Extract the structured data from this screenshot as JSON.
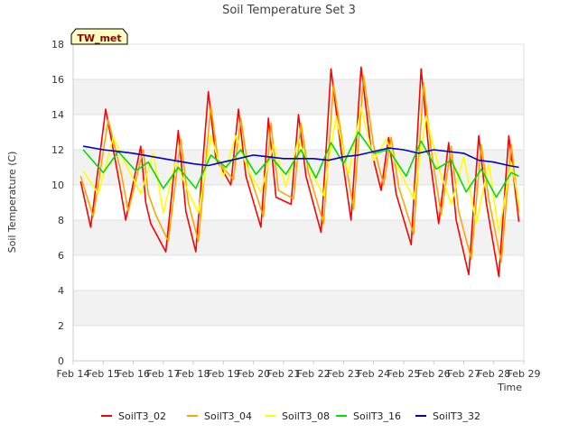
{
  "chart_data": {
    "type": "line",
    "title": "Soil Temperature Set 3",
    "xlabel": "Time",
    "ylabel": "Soil Temperature (C)",
    "ylim": [
      0,
      18
    ],
    "yticks": [
      0,
      2,
      4,
      6,
      8,
      10,
      12,
      14,
      16,
      18
    ],
    "xlim": [
      "Feb 14",
      "Feb 29"
    ],
    "xticks": [
      "Feb 14",
      "Feb 15",
      "Feb 16",
      "Feb 17",
      "Feb 18",
      "Feb 19",
      "Feb 20",
      "Feb 21",
      "Feb 22",
      "Feb 23",
      "Feb 24",
      "Feb 25",
      "Feb 26",
      "Feb 27",
      "Feb 28",
      "Feb 29"
    ],
    "grid": "horizontal bands",
    "legend_position": "bottom",
    "badge": "TW_met",
    "series": [
      {
        "name": "SoilT3_02",
        "color": "#ff0000",
        "x": [
          "Feb 14 06:00",
          "Feb 14 14:00",
          "Feb 15 02:00",
          "Feb 15 12:00",
          "Feb 15 18:00",
          "Feb 16 06:00",
          "Feb 16 10:00",
          "Feb 16 14:00",
          "Feb 17 02:00",
          "Feb 17 12:00",
          "Feb 17 18:00",
          "Feb 18 02:00",
          "Feb 18 12:00",
          "Feb 18 18:00",
          "Feb 19 06:00",
          "Feb 19 12:00",
          "Feb 19 18:00",
          "Feb 20 06:00",
          "Feb 20 12:00",
          "Feb 20 18:00",
          "Feb 21 06:00",
          "Feb 21 12:00",
          "Feb 21 18:00",
          "Feb 22 06:00",
          "Feb 22 14:00",
          "Feb 22 22:00",
          "Feb 23 06:00",
          "Feb 23 14:00",
          "Feb 23 22:00",
          "Feb 24 06:00",
          "Feb 24 12:00",
          "Feb 24 18:00",
          "Feb 25 06:00",
          "Feb 25 14:00",
          "Feb 25 20:00",
          "Feb 26 04:00",
          "Feb 26 12:00",
          "Feb 26 18:00",
          "Feb 27 04:00",
          "Feb 27 12:00",
          "Feb 27 18:00",
          "Feb 28 04:00",
          "Feb 28 12:00",
          "Feb 28 20:00"
        ],
        "y": [
          10.2,
          7.6,
          14.3,
          10.5,
          8.0,
          12.2,
          9.0,
          7.8,
          6.2,
          13.1,
          8.5,
          6.2,
          15.3,
          11.5,
          10.0,
          14.3,
          10.5,
          7.6,
          13.8,
          9.3,
          8.9,
          14.0,
          10.5,
          7.3,
          16.6,
          12.0,
          8.0,
          16.7,
          12.0,
          9.7,
          12.7,
          9.5,
          6.6,
          16.6,
          12.0,
          7.8,
          12.4,
          8.0,
          4.9,
          12.8,
          9.0,
          4.8,
          12.8,
          7.9
        ]
      },
      {
        "name": "SoilT3_04",
        "color": "#ffa500",
        "x": [
          "Feb 14 06:00",
          "Feb 14 16:00",
          "Feb 15 04:00",
          "Feb 15 14:00",
          "Feb 15 20:00",
          "Feb 16 08:00",
          "Feb 16 12:00",
          "Feb 16 18:00",
          "Feb 17 04:00",
          "Feb 17 14:00",
          "Feb 17 20:00",
          "Feb 18 04:00",
          "Feb 18 14:00",
          "Feb 18 20:00",
          "Feb 19 08:00",
          "Feb 19 14:00",
          "Feb 19 20:00",
          "Feb 20 08:00",
          "Feb 20 14:00",
          "Feb 20 20:00",
          "Feb 21 08:00",
          "Feb 21 14:00",
          "Feb 21 20:00",
          "Feb 22 08:00",
          "Feb 22 16:00",
          "Feb 23 00:00",
          "Feb 23 08:00",
          "Feb 23 16:00",
          "Feb 24 00:00",
          "Feb 24 08:00",
          "Feb 24 14:00",
          "Feb 24 20:00",
          "Feb 25 08:00",
          "Feb 25 16:00",
          "Feb 25 22:00",
          "Feb 26 06:00",
          "Feb 26 14:00",
          "Feb 26 20:00",
          "Feb 27 06:00",
          "Feb 27 14:00",
          "Feb 27 20:00",
          "Feb 28 06:00",
          "Feb 28 14:00",
          "Feb 28 20:00"
        ],
        "y": [
          10.5,
          8.2,
          13.7,
          10.8,
          8.5,
          12.0,
          9.5,
          8.3,
          6.8,
          12.6,
          9.0,
          6.8,
          14.5,
          11.3,
          10.3,
          13.8,
          10.8,
          8.2,
          13.5,
          9.7,
          9.2,
          13.5,
          10.7,
          7.8,
          15.7,
          12.0,
          8.6,
          16.2,
          12.2,
          10.0,
          12.7,
          9.9,
          7.2,
          15.8,
          12.0,
          8.3,
          12.2,
          8.5,
          5.8,
          12.3,
          9.2,
          5.6,
          12.3,
          8.4
        ]
      },
      {
        "name": "SoilT3_08",
        "color": "#ffff00",
        "x": [
          "Feb 14 08:00",
          "Feb 14 20:00",
          "Feb 15 08:00",
          "Feb 15 18:00",
          "Feb 16 06:00",
          "Feb 16 16:00",
          "Feb 17 00:00",
          "Feb 17 10:00",
          "Feb 17 18:00",
          "Feb 18 04:00",
          "Feb 18 14:00",
          "Feb 19 00:00",
          "Feb 19 10:00",
          "Feb 19 20:00",
          "Feb 20 06:00",
          "Feb 20 16:00",
          "Feb 21 02:00",
          "Feb 21 12:00",
          "Feb 21 22:00",
          "Feb 22 08:00",
          "Feb 22 18:00",
          "Feb 23 04:00",
          "Feb 23 14:00",
          "Feb 24 00:00",
          "Feb 24 10:00",
          "Feb 24 20:00",
          "Feb 25 08:00",
          "Feb 25 18:00",
          "Feb 26 04:00",
          "Feb 26 14:00",
          "Feb 27 00:00",
          "Feb 27 10:00",
          "Feb 27 20:00",
          "Feb 28 04:00",
          "Feb 28 14:00",
          "Feb 28 20:00"
        ],
        "y": [
          10.8,
          9.5,
          12.7,
          11.2,
          9.5,
          11.8,
          8.4,
          11.4,
          9.9,
          8.4,
          12.8,
          10.5,
          12.8,
          10.8,
          9.6,
          12.3,
          9.9,
          12.6,
          10.8,
          9.4,
          13.9,
          10.6,
          14.4,
          11.4,
          12.6,
          10.9,
          9.2,
          13.9,
          11.0,
          8.9,
          11.6,
          7.8,
          11.2,
          7.3,
          11.3,
          8.9
        ]
      },
      {
        "name": "SoilT3_16",
        "color": "#00dd00",
        "x": [
          "Feb 14 08:00",
          "Feb 15 00:00",
          "Feb 15 12:00",
          "Feb 16 02:00",
          "Feb 16 12:00",
          "Feb 17 00:00",
          "Feb 17 12:00",
          "Feb 18 02:00",
          "Feb 18 14:00",
          "Feb 19 02:00",
          "Feb 19 14:00",
          "Feb 20 02:00",
          "Feb 20 14:00",
          "Feb 21 02:00",
          "Feb 21 14:00",
          "Feb 22 02:00",
          "Feb 22 14:00",
          "Feb 23 00:00",
          "Feb 23 12:00",
          "Feb 24 00:00",
          "Feb 24 12:00",
          "Feb 25 02:00",
          "Feb 25 14:00",
          "Feb 26 02:00",
          "Feb 26 14:00",
          "Feb 27 02:00",
          "Feb 27 14:00",
          "Feb 28 02:00",
          "Feb 28 14:00",
          "Feb 28 20:00"
        ],
        "y": [
          12.0,
          10.7,
          11.9,
          10.8,
          11.3,
          9.8,
          11.0,
          9.8,
          11.7,
          11.0,
          12.0,
          10.6,
          11.6,
          10.6,
          12.0,
          10.4,
          12.4,
          11.2,
          13.0,
          11.8,
          12.0,
          10.5,
          12.5,
          10.9,
          11.4,
          9.6,
          10.9,
          9.3,
          10.7,
          10.5
        ]
      },
      {
        "name": "SoilT3_32",
        "color": "#0000cc",
        "x": [
          "Feb 14 08:00",
          "Feb 15 00:00",
          "Feb 16 00:00",
          "Feb 17 00:00",
          "Feb 18 00:00",
          "Feb 18 12:00",
          "Feb 19 12:00",
          "Feb 20 00:00",
          "Feb 21 00:00",
          "Feb 22 00:00",
          "Feb 22 12:00",
          "Feb 23 00:00",
          "Feb 23 12:00",
          "Feb 24 00:00",
          "Feb 24 12:00",
          "Feb 25 00:00",
          "Feb 25 12:00",
          "Feb 26 00:00",
          "Feb 26 12:00",
          "Feb 27 00:00",
          "Feb 27 12:00",
          "Feb 28 00:00",
          "Feb 28 12:00",
          "Feb 28 20:00"
        ],
        "y": [
          12.2,
          12.0,
          11.8,
          11.5,
          11.2,
          11.1,
          11.5,
          11.7,
          11.5,
          11.5,
          11.4,
          11.6,
          11.7,
          11.9,
          12.1,
          12.0,
          11.8,
          12.0,
          11.9,
          11.8,
          11.4,
          11.3,
          11.1,
          11.0
        ]
      }
    ]
  }
}
